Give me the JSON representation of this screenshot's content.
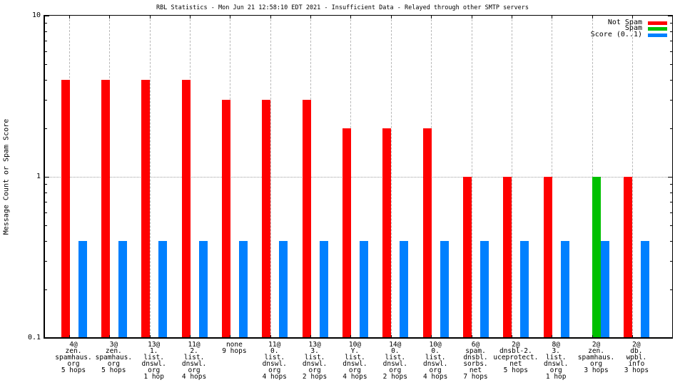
{
  "page": {
    "background": "#ffffff"
  },
  "chart_data": {
    "type": "bar",
    "title": "RBL Statistics - Mon Jun 21 12:58:10 EDT 2021 - Insufficient Data - Relayed through other SMTP servers",
    "ylabel": "Message Count or Spam Score",
    "xlabel": "",
    "yscale": "log",
    "ylim": [
      0.1,
      10
    ],
    "y_major_ticks": {
      "values": [
        10,
        1,
        0.1
      ],
      "labels": [
        "10",
        "1",
        "0.1"
      ]
    },
    "y_minor_ticks": [
      0.2,
      0.3,
      0.4,
      0.5,
      0.6,
      0.7,
      0.8,
      0.9,
      2,
      3,
      4,
      5,
      6,
      7,
      8,
      9
    ],
    "grid_y_at": 1,
    "grid_vertical": "per-category",
    "legend_position": "top-right-inside",
    "categories": [
      "4@\nzen.\nspamhaus.\norg\n5 hops",
      "3@\nzen.\nspamhaus.\norg\n5 hops",
      "13@\n1.\nlist.\ndnswl.\norg\n1 hop",
      "11@\n2.\nlist.\ndnswl.\norg\n4 hops",
      "none\n9 hops",
      "11@\n0.\nlist.\ndnswl.\norg\n4 hops",
      "13@\n3.\nlist.\ndnswl.\norg\n2 hops",
      "10@\nY.\nlist.\ndnswl.\norg\n4 hops",
      "14@\n0.\nlist.\ndnswl.\norg\n2 hops",
      "10@\n0.\nlist.\ndnswl.\norg\n4 hops",
      "6@\nspam.\ndnsbl.\nsorbs.\nnet\n7 hops",
      "2@\ndnsbl-2.\nuceprotect.\nnet\n5 hops",
      "8@\n3.\nlist.\ndnswl.\norg\n1 hop",
      "2@\nzen.\nspamhaus.\norg\n3 hops",
      "2@\ndb.\nwpbl.\ninfo\n3 hops"
    ],
    "series": [
      {
        "name": "Not Spam",
        "color": "#ff0000",
        "values": [
          4,
          4,
          4,
          4,
          3,
          3,
          3,
          2,
          2,
          2,
          1,
          1,
          1,
          0,
          1
        ]
      },
      {
        "name": "Spam",
        "color": "#00c000",
        "values": [
          0,
          0,
          0,
          0,
          0,
          0,
          0,
          0,
          0,
          0,
          0,
          0,
          0,
          1,
          0
        ]
      },
      {
        "name": "Score (0..1)",
        "color": "#0080ff",
        "values": [
          0.4,
          0.4,
          0.4,
          0.4,
          0.4,
          0.4,
          0.4,
          0.4,
          0.4,
          0.4,
          0.4,
          0.4,
          0.4,
          0.4,
          0.4
        ]
      }
    ],
    "colors": {
      "grid": "#b8b8b8",
      "axis": "#000000",
      "background": "#ffffff"
    }
  }
}
